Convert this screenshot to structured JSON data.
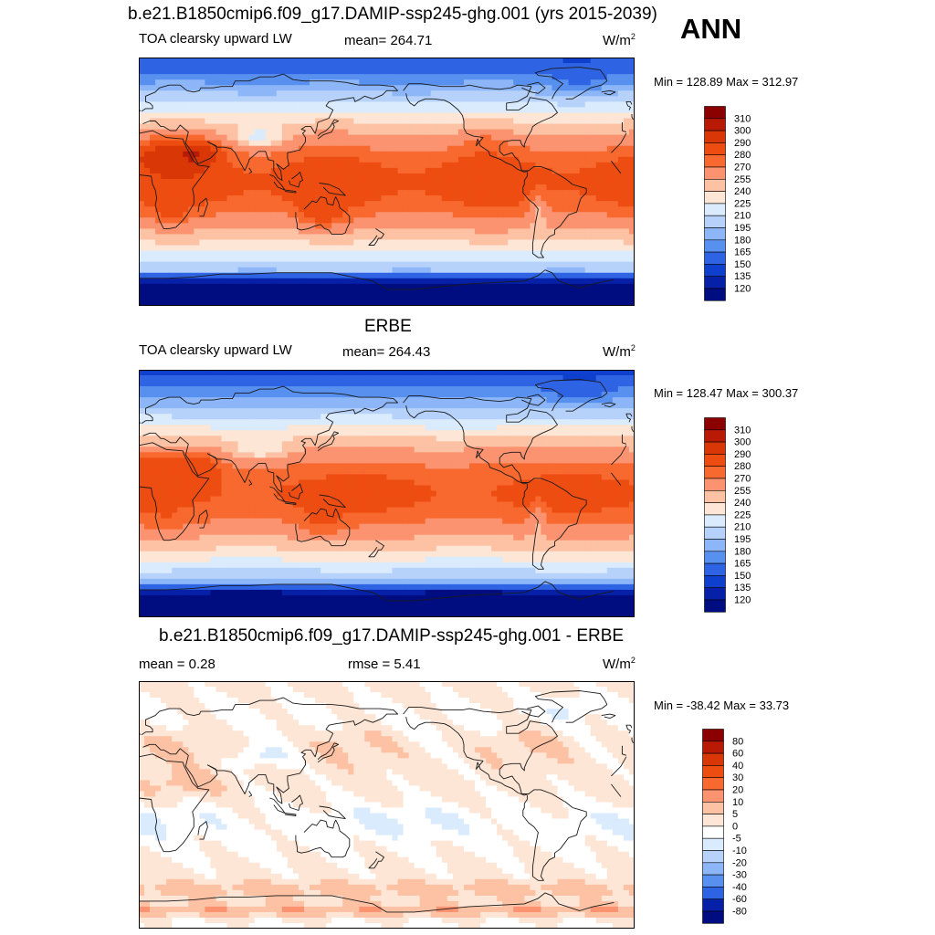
{
  "header": {
    "season": "ANN"
  },
  "chart_data": [
    {
      "type": "heatmap",
      "title": "b.e21.B1850cmip6.f09_g17.DAMIP-ssp245-ghg.001 (yrs 2015-2039)",
      "left_label": "TOA clearsky upward LW",
      "center_label": "mean= 264.71",
      "units": "W/m",
      "units_exp": "2",
      "minmax": "Min = 128.89 Max = 312.97",
      "levels": [
        "310",
        "300",
        "290",
        "280",
        "270",
        "255",
        "240",
        "225",
        "210",
        "195",
        "180",
        "165",
        "150",
        "135",
        "120"
      ],
      "colors": [
        "#8b0000",
        "#b81a05",
        "#d93806",
        "#ee4d12",
        "#f8692f",
        "#fb9270",
        "#fdc1a4",
        "#fde6d6",
        "#d9ebfd",
        "#b6d2fb",
        "#8cb6f8",
        "#5890f0",
        "#2e64e4",
        "#0f3fcd",
        "#0621a8",
        "#000d80"
      ],
      "field": "clearsky_lw_model"
    },
    {
      "type": "heatmap",
      "title": "ERBE",
      "left_label": "TOA clearsky upward LW",
      "center_label": "mean= 264.43",
      "units": "W/m",
      "units_exp": "2",
      "minmax": "Min = 128.47 Max = 300.37",
      "levels": [
        "310",
        "300",
        "290",
        "280",
        "270",
        "255",
        "240",
        "225",
        "210",
        "195",
        "180",
        "165",
        "150",
        "135",
        "120"
      ],
      "colors": [
        "#8b0000",
        "#b81a05",
        "#d93806",
        "#ee4d12",
        "#f8692f",
        "#fb9270",
        "#fdc1a4",
        "#fde6d6",
        "#d9ebfd",
        "#b6d2fb",
        "#8cb6f8",
        "#5890f0",
        "#2e64e4",
        "#0f3fcd",
        "#0621a8",
        "#000d80"
      ],
      "field": "clearsky_lw_obs"
    },
    {
      "type": "heatmap",
      "title": "b.e21.B1850cmip6.f09_g17.DAMIP-ssp245-ghg.001 - ERBE",
      "left_label": "mean =   0.28",
      "center_label": "rmse =   5.41",
      "units": "W/m",
      "units_exp": "2",
      "minmax": "Min = -38.42 Max =  33.73",
      "levels": [
        "80",
        "60",
        "40",
        "30",
        "20",
        "10",
        "5",
        "0",
        "-5",
        "-10",
        "-20",
        "-30",
        "-40",
        "-60",
        "-80"
      ],
      "colors": [
        "#8b0000",
        "#b81a05",
        "#d93806",
        "#ee4d12",
        "#f8692f",
        "#fb9270",
        "#fdc1a4",
        "#fde6d6",
        "#ffffff",
        "#d9ebfd",
        "#b6d2fb",
        "#8cb6f8",
        "#5890f0",
        "#2e64e4",
        "#0621a8",
        "#000d80"
      ],
      "field": "difference"
    }
  ]
}
